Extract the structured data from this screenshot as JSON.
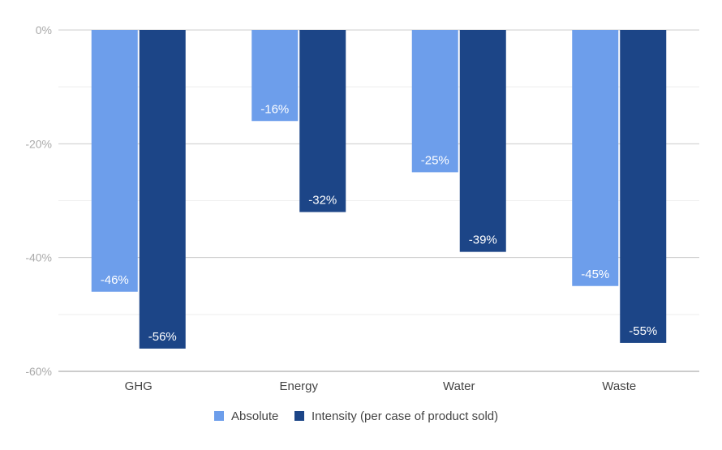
{
  "chart_data": {
    "type": "bar",
    "title": "",
    "xlabel": "",
    "ylabel": "",
    "categories": [
      "GHG",
      "Energy",
      "Water",
      "Waste"
    ],
    "series": [
      {
        "name": "Absolute",
        "color": "#6d9eeb",
        "values": [
          -46,
          -16,
          -25,
          -45
        ],
        "labels": [
          "-46%",
          "-16%",
          "-25%",
          "-45%"
        ]
      },
      {
        "name": "Intensity (per case of product sold)",
        "color": "#1c4587",
        "values": [
          -56,
          -32,
          -39,
          -55
        ],
        "labels": [
          "-56%",
          "-32%",
          "-39%",
          "-55%"
        ]
      }
    ],
    "ylim": [
      -60,
      0
    ],
    "yticks": [
      {
        "value": 0,
        "label": "0%"
      },
      {
        "value": -20,
        "label": "-20%"
      },
      {
        "value": -40,
        "label": "-40%"
      },
      {
        "value": -60,
        "label": "-60%"
      }
    ],
    "minor_gridlines": [
      -10,
      -30,
      -50
    ],
    "grid": true,
    "legend_position": "bottom"
  }
}
